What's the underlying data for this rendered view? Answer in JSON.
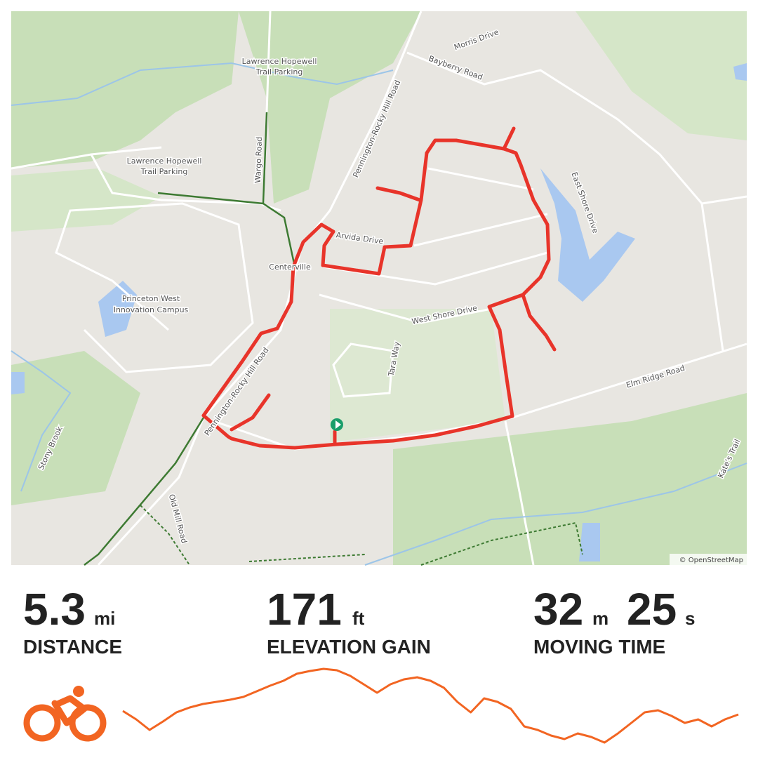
{
  "map": {
    "labels": [
      "Lawrence Hopewell",
      "Trail Parking",
      "Lawrence Hopewell",
      "Trail Parking",
      "Morris Drive",
      "Bayberry Road",
      "Pennington-Rocky Hill Road",
      "Wargo Road",
      "Arvida Drive",
      "Centerville",
      "Princeton West",
      "Innovation Campus",
      "West Shore Drive",
      "Tara Way",
      "East Shore Drive",
      "Elm Ridge Road",
      "Pennington-Rocky Hill Road",
      "Stony Brook",
      "Old Mill Road",
      "Kate's Trail"
    ],
    "attribution": "© OpenStreetMap"
  },
  "stats": {
    "distance": {
      "value": 5.3,
      "unit": "mi",
      "label": "DISTANCE"
    },
    "elevation": {
      "value": 171,
      "unit": "ft",
      "label": "ELEVATION GAIN"
    },
    "moving_time": {
      "minutes": 32,
      "minutes_unit": "m",
      "seconds": 25,
      "seconds_unit": "s",
      "label": "MOVING TIME"
    }
  },
  "elevation_profile": {
    "type": "line",
    "color": "#f26522",
    "ylim": [
      0,
      110
    ],
    "values": [
      47,
      35,
      20,
      32,
      45,
      52,
      57,
      60,
      63,
      67,
      75,
      83,
      90,
      100,
      104,
      107,
      105,
      97,
      85,
      73,
      85,
      92,
      95,
      90,
      80,
      60,
      45,
      65,
      60,
      50,
      25,
      20,
      12,
      7,
      15,
      10,
      2,
      15,
      30,
      45,
      48,
      40,
      30,
      35,
      25,
      35,
      42
    ]
  }
}
